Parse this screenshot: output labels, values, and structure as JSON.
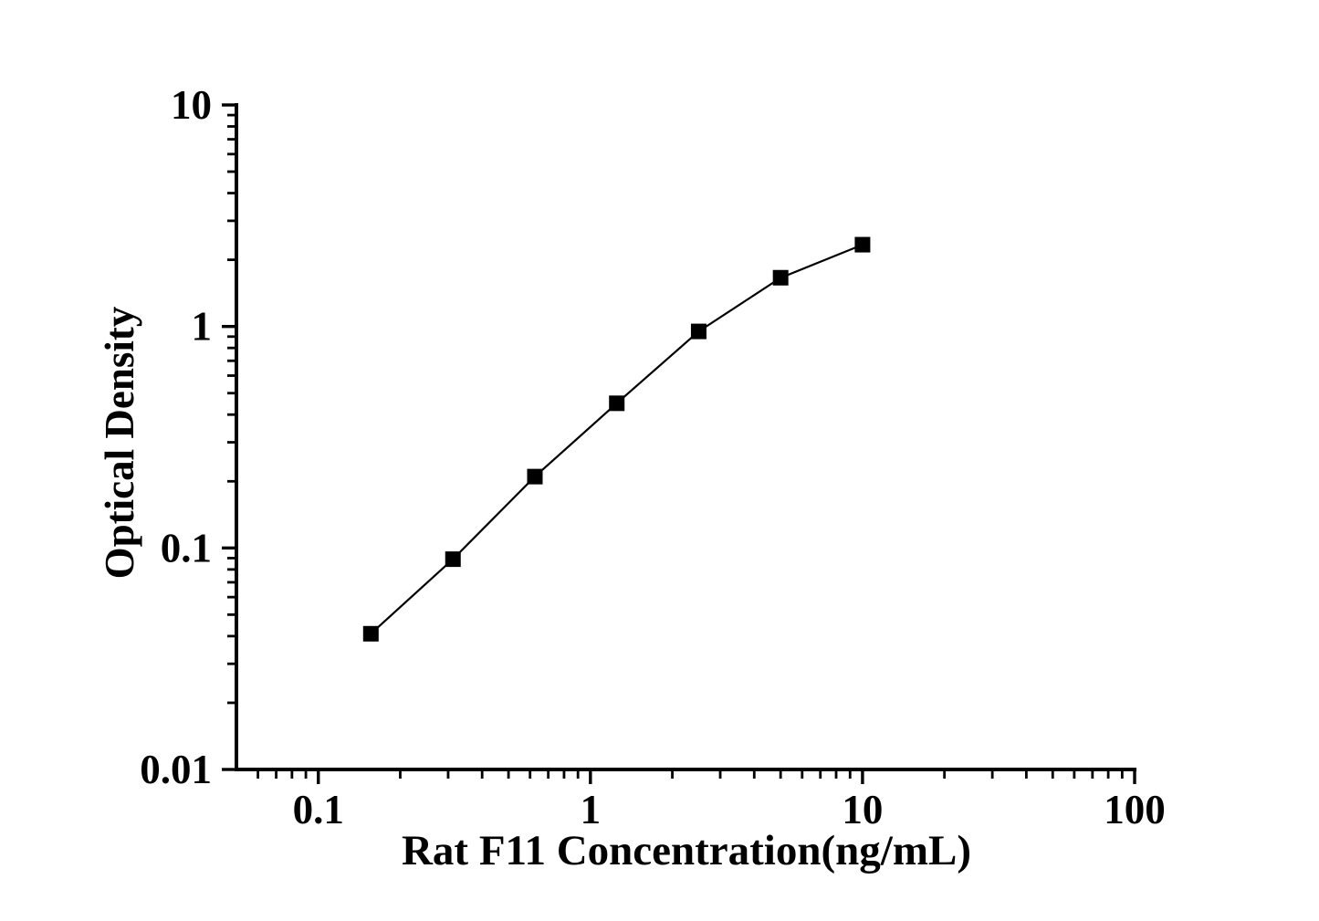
{
  "figure": {
    "background": "#ffffff",
    "foreground": "#000000"
  },
  "chart_data": {
    "type": "line",
    "title": "",
    "xlabel": "Rat F11 Concentration(ng/mL)",
    "ylabel": "Optical Density",
    "x_scale": "log",
    "y_scale": "log",
    "xlim": [
      0.05,
      100
    ],
    "ylim": [
      0.01,
      10
    ],
    "x_major_ticks": [
      0.1,
      1,
      10,
      100
    ],
    "x_tick_labels": [
      "0.1",
      "1",
      "10",
      "100"
    ],
    "y_major_ticks": [
      0.01,
      0.1,
      1,
      10
    ],
    "y_tick_labels": [
      "0.01",
      "0.1",
      "1",
      "10"
    ],
    "grid": false,
    "legend": "none",
    "series": [
      {
        "name": "standard-curve",
        "marker": "filled-square",
        "line_color": "#000000",
        "marker_color": "#000000",
        "x": [
          0.156,
          0.3125,
          0.625,
          1.25,
          2.5,
          5,
          10
        ],
        "y": [
          0.041,
          0.089,
          0.21,
          0.45,
          0.95,
          1.66,
          2.34
        ]
      }
    ]
  }
}
